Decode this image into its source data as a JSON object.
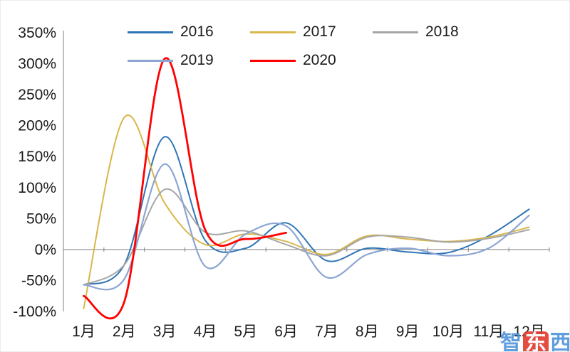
{
  "watermark": {
    "part1": "智",
    "part2": "东",
    "part3": "西"
  },
  "chart_data": {
    "type": "line",
    "title": "",
    "xlabel": "",
    "ylabel": "",
    "ylim": [
      -100,
      350
    ],
    "grid": false,
    "legend_position": "top",
    "x_categories": [
      "1月",
      "2月",
      "3月",
      "4月",
      "5月",
      "6月",
      "7月",
      "8月",
      "9月",
      "10月",
      "11月",
      "12月"
    ],
    "y_ticks": [
      350,
      300,
      250,
      200,
      150,
      100,
      50,
      0,
      -50,
      -100
    ],
    "y_tick_labels": [
      "350%",
      "300%",
      "250%",
      "200%",
      "150%",
      "100%",
      "50%",
      "0%",
      "-50%",
      "-100%"
    ],
    "series": [
      {
        "name": "2016",
        "color": "#2E75B6",
        "width": 2,
        "start_month": 1,
        "values": [
          -57,
          -25,
          182,
          15,
          2,
          43,
          -18,
          2,
          -4,
          -5,
          22,
          65
        ]
      },
      {
        "name": "2017",
        "color": "#D9B64B",
        "width": 2,
        "start_month": 1,
        "values": [
          -95,
          213,
          75,
          8,
          25,
          13,
          -8,
          22,
          17,
          13,
          20,
          36
        ]
      },
      {
        "name": "2018",
        "color": "#A6A6A6",
        "width": 2,
        "start_month": 1,
        "values": [
          -57,
          -25,
          97,
          28,
          30,
          8,
          -10,
          20,
          20,
          12,
          18,
          32
        ]
      },
      {
        "name": "2019",
        "color": "#8CA5D3",
        "width": 2.2,
        "start_month": 1,
        "values": [
          -57,
          -48,
          138,
          -27,
          25,
          38,
          -45,
          -8,
          2,
          -10,
          2,
          55
        ]
      },
      {
        "name": "2020",
        "color": "#FF0000",
        "width": 2.8,
        "start_month": 1,
        "values": [
          -75,
          -85,
          308,
          32,
          17,
          27
        ]
      }
    ]
  }
}
